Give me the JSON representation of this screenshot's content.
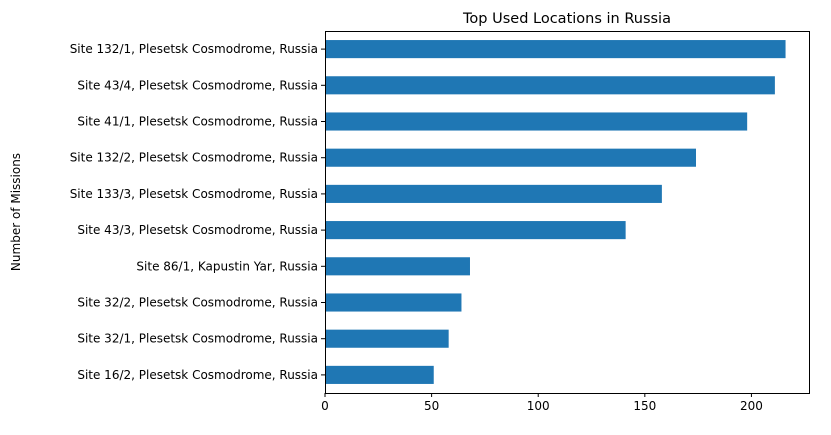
{
  "chart_data": {
    "type": "bar",
    "orientation": "horizontal",
    "title": "Top Used Locations in Russia",
    "xlabel": "",
    "ylabel": "Number of Missions",
    "categories": [
      "Site 132/1, Plesetsk Cosmodrome, Russia",
      "Site 43/4, Plesetsk Cosmodrome, Russia",
      "Site 41/1, Plesetsk Cosmodrome, Russia",
      "Site 132/2, Plesetsk Cosmodrome, Russia",
      "Site 133/3, Plesetsk Cosmodrome, Russia",
      "Site 43/3, Plesetsk Cosmodrome, Russia",
      "Site 86/1, Kapustin Yar, Russia",
      "Site 32/2, Plesetsk Cosmodrome, Russia",
      "Site 32/1, Plesetsk Cosmodrome, Russia",
      "Site 16/2, Plesetsk Cosmodrome, Russia"
    ],
    "values": [
      216,
      211,
      198,
      174,
      158,
      141,
      68,
      64,
      58,
      51
    ],
    "xlim": [
      0,
      227
    ],
    "xticks": [
      0,
      50,
      100,
      150,
      200
    ],
    "grid": false,
    "bar_color": "#1f77b4"
  }
}
